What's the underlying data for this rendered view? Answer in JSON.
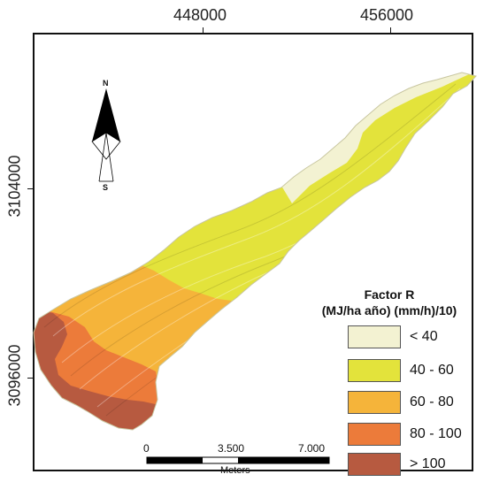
{
  "grid": {
    "x_labels": [
      "448000",
      "456000"
    ],
    "y_labels": [
      "3104000",
      "3096000"
    ]
  },
  "north_arrow": {
    "north_label": "N",
    "south_label": "S",
    "icon": "north-arrow-icon"
  },
  "legend": {
    "title_line1": "Factor R",
    "title_line2": "(MJ/ha año) (mm/h)/10)",
    "items": [
      {
        "label": "< 40",
        "color": "#f3f2d2"
      },
      {
        "label": "40 - 60",
        "color": "#e3e33b"
      },
      {
        "label": "60 - 80",
        "color": "#f5b43a"
      },
      {
        "label": "80 - 100",
        "color": "#ec7b3a"
      },
      {
        "label": "> 100",
        "color": "#b75a40"
      }
    ]
  },
  "scale_bar": {
    "labels": [
      "0",
      "3.500",
      "7.000"
    ],
    "unit": "Meters"
  }
}
